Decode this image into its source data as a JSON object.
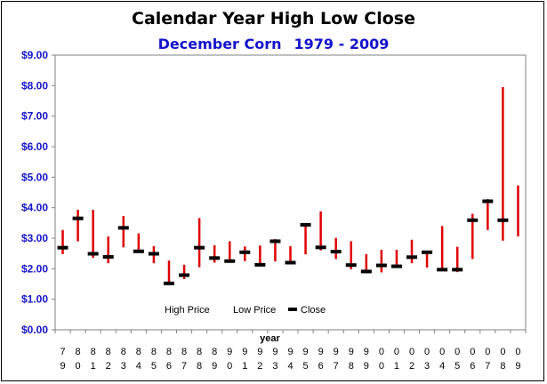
{
  "chart_data": {
    "type": "high-low-close",
    "title": "Calendar Year High Low Close",
    "subtitle_parts": [
      "December Corn",
      "1979 - 2009"
    ],
    "xlabel": "year",
    "ylabel": "",
    "ylim": [
      0,
      9
    ],
    "y_ticks": [
      "$0.00",
      "$1.00",
      "$2.00",
      "$3.00",
      "$4.00",
      "$5.00",
      "$6.00",
      "$7.00",
      "$8.00",
      "$9.00"
    ],
    "categories": [
      "79",
      "80",
      "81",
      "82",
      "83",
      "84",
      "85",
      "86",
      "87",
      "88",
      "89",
      "90",
      "91",
      "92",
      "93",
      "94",
      "95",
      "96",
      "97",
      "98",
      "99",
      "00",
      "01",
      "02",
      "03",
      "04",
      "05",
      "06",
      "07",
      "08",
      "09"
    ],
    "series": [
      {
        "name": "High Price",
        "values": [
          3.27,
          3.93,
          3.93,
          3.06,
          3.73,
          3.16,
          2.74,
          2.27,
          2.13,
          3.66,
          2.77,
          2.9,
          2.73,
          2.76,
          2.97,
          2.74,
          3.46,
          3.88,
          3.01,
          2.9,
          2.48,
          2.62,
          2.62,
          2.95,
          2.56,
          3.4,
          2.72,
          3.8,
          4.28,
          7.95,
          4.73
        ]
      },
      {
        "name": "Low Price",
        "values": [
          2.48,
          2.9,
          2.36,
          2.18,
          2.7,
          2.58,
          2.18,
          1.52,
          1.66,
          2.05,
          2.2,
          2.2,
          2.25,
          2.08,
          2.24,
          2.15,
          2.47,
          2.6,
          2.32,
          1.98,
          1.85,
          1.88,
          2.05,
          2.18,
          2.04,
          1.92,
          1.89,
          2.32,
          3.27,
          2.92,
          3.06
        ]
      },
      {
        "name": "Close",
        "values": [
          2.69,
          3.65,
          2.49,
          2.39,
          3.34,
          2.57,
          2.49,
          1.52,
          1.79,
          2.69,
          2.35,
          2.25,
          2.54,
          2.13,
          2.9,
          2.2,
          3.44,
          2.7,
          2.56,
          2.12,
          1.91,
          2.11,
          2.08,
          2.38,
          2.54,
          1.97,
          1.97,
          3.59,
          4.21,
          3.59,
          null
        ]
      }
    ],
    "colors": {
      "range_line": "#e00000",
      "close_mark": "#000000",
      "axis_text": "#1414cc"
    },
    "grid": false,
    "legend_position": "bottom-center"
  }
}
